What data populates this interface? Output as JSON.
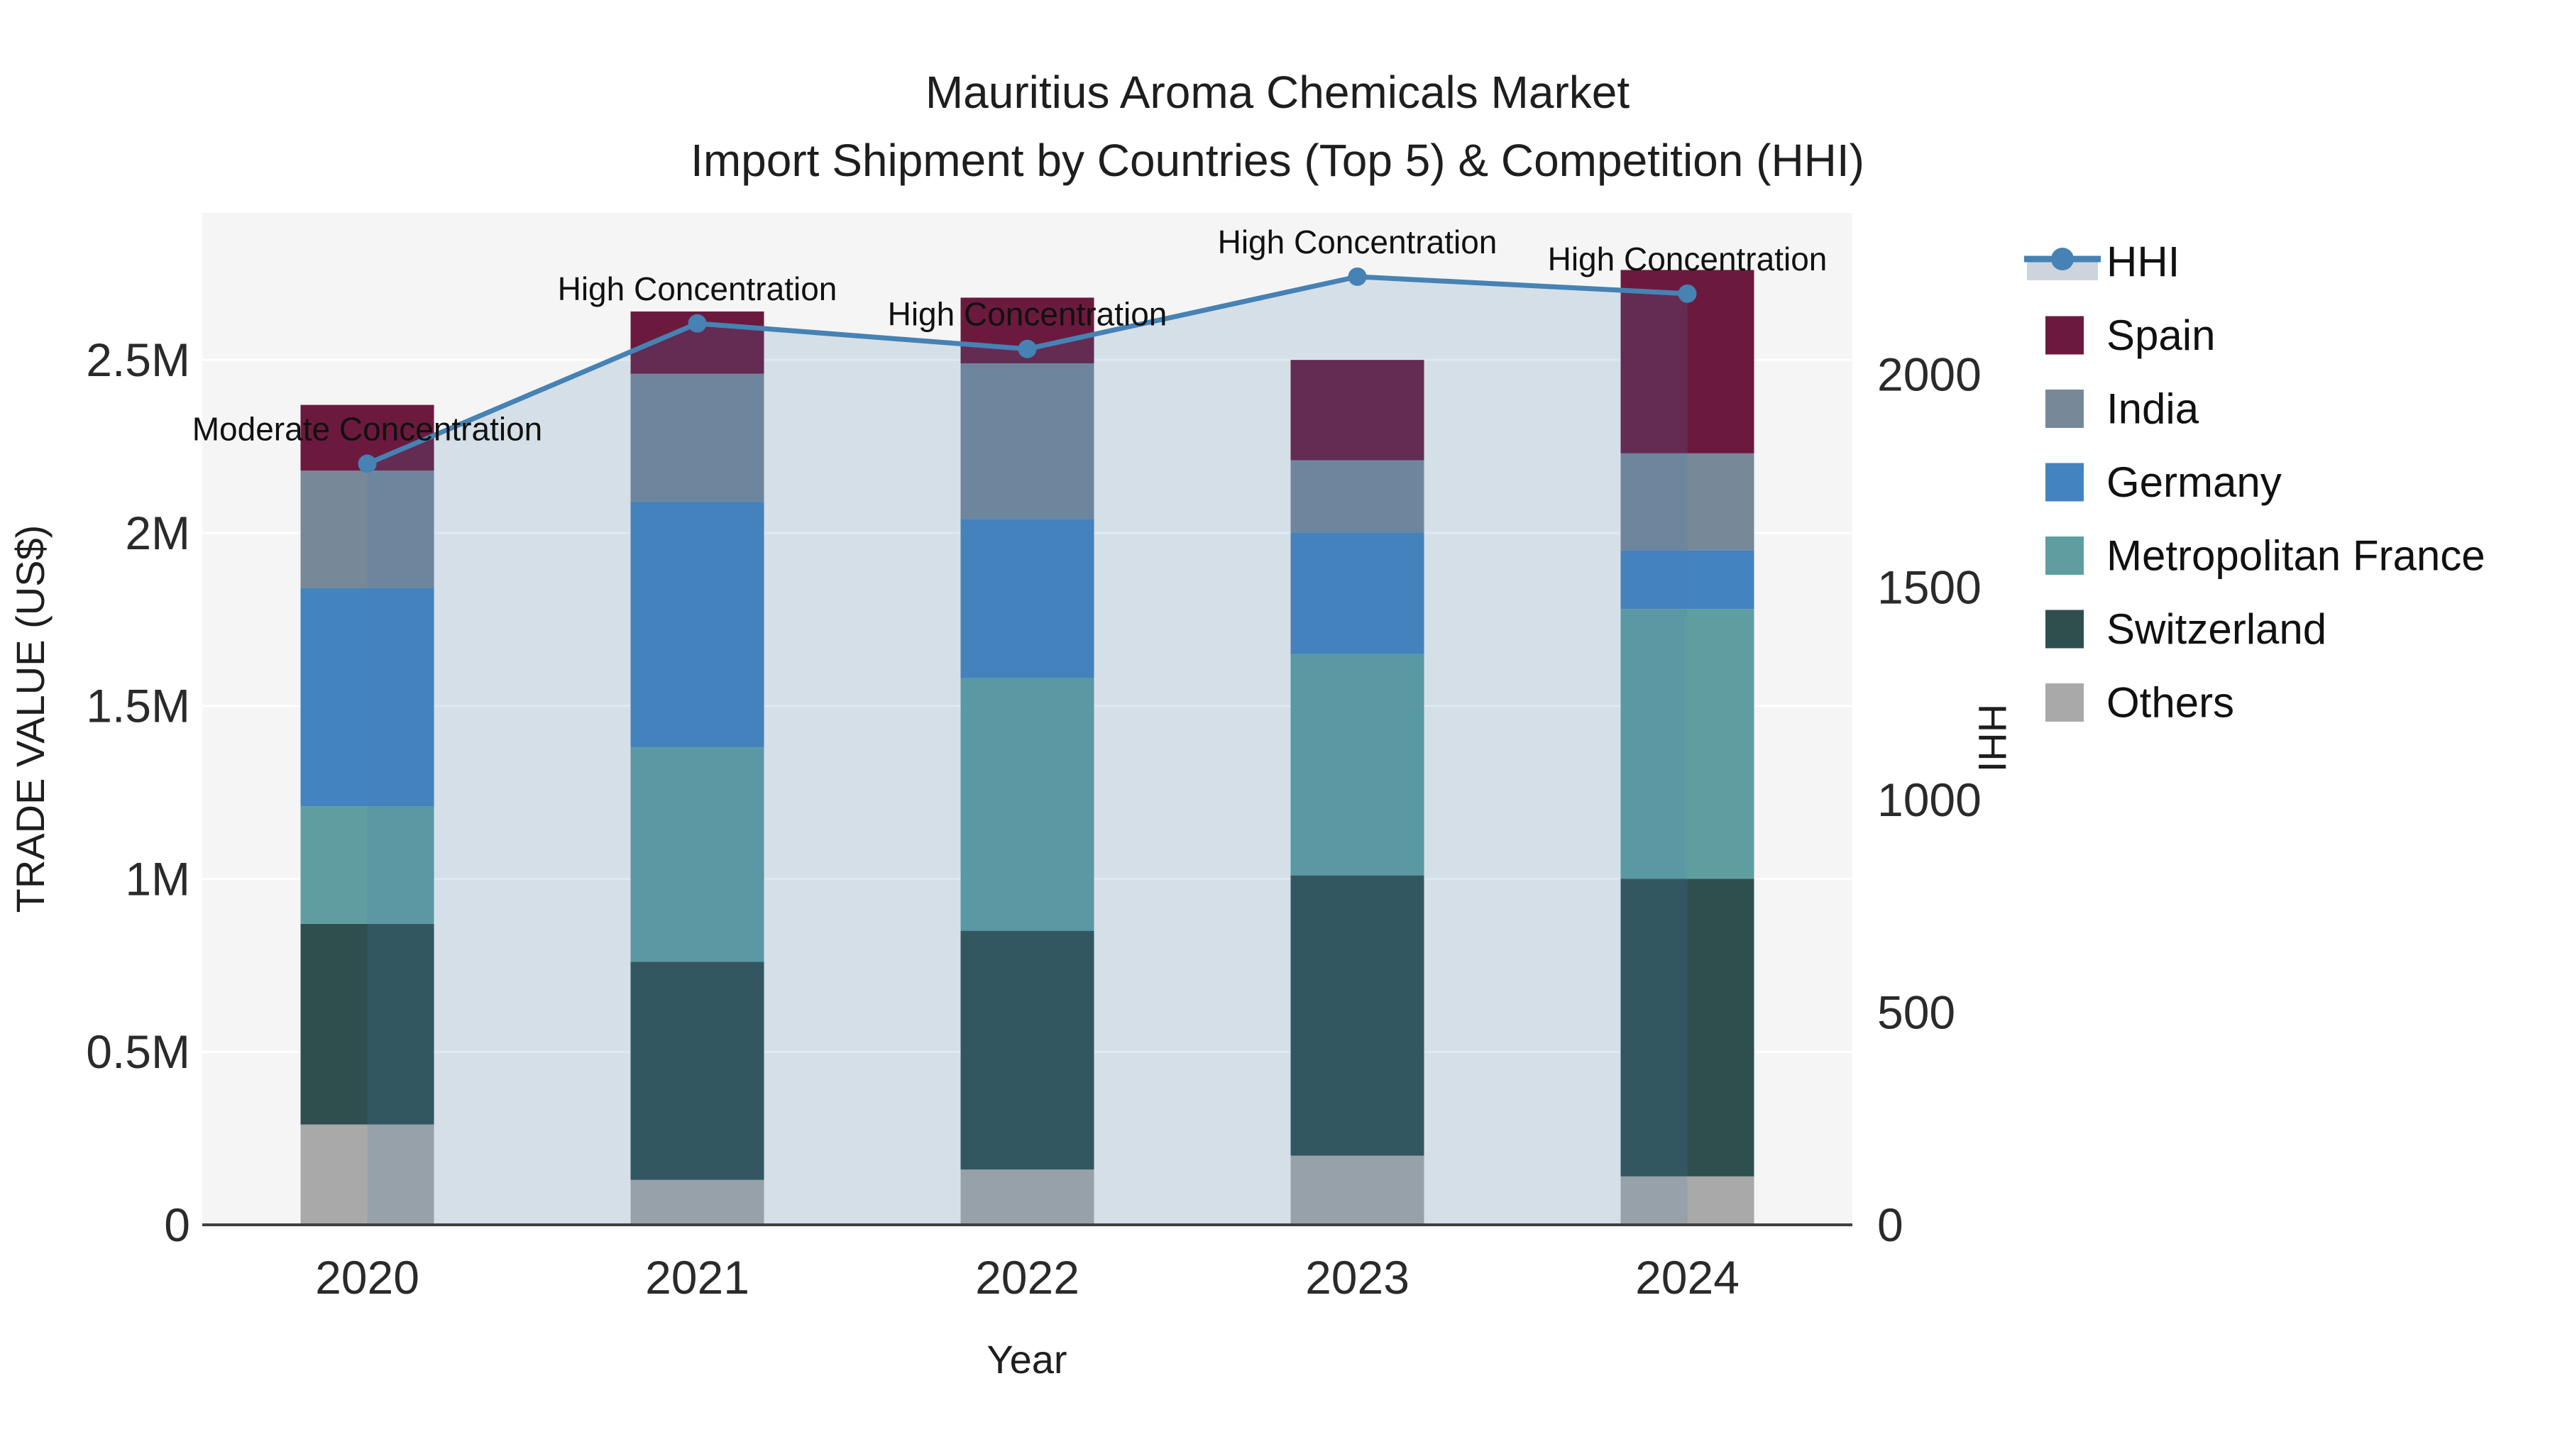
{
  "chart_data": {
    "type": "combo_stacked_bar_line",
    "title_line1": "Mauritius Aroma Chemicals Market",
    "title_line2": "Import Shipment by Countries (Top 5) & Competition (HHI)",
    "x": {
      "label": "Year",
      "categories": [
        "2020",
        "2021",
        "2022",
        "2023",
        "2024"
      ]
    },
    "y_left": {
      "label": "TRADE VALUE (US$)",
      "max": 2925000,
      "ticks": [
        {
          "v": 0,
          "t": "0"
        },
        {
          "v": 500000,
          "t": "0.5M"
        },
        {
          "v": 1000000,
          "t": "1M"
        },
        {
          "v": 1500000,
          "t": "1.5M"
        },
        {
          "v": 2000000,
          "t": "2M"
        },
        {
          "v": 2500000,
          "t": "2.5M"
        }
      ]
    },
    "y_right": {
      "label": "HHI",
      "max": 2380,
      "ticks": [
        {
          "v": 0,
          "t": "0"
        },
        {
          "v": 500,
          "t": "500"
        },
        {
          "v": 1000,
          "t": "1000"
        },
        {
          "v": 1500,
          "t": "1500"
        },
        {
          "v": 2000,
          "t": "2000"
        }
      ]
    },
    "stack_order_bottom_up": [
      "Others",
      "Switzerland",
      "Metropolitan France",
      "Germany",
      "India",
      "Spain"
    ],
    "series": [
      {
        "name": "Spain",
        "color": "#6b1a3e",
        "values": [
          190000,
          180000,
          190000,
          290000,
          530000
        ]
      },
      {
        "name": "India",
        "color": "#778899",
        "values": [
          340000,
          370000,
          450000,
          210000,
          280000
        ]
      },
      {
        "name": "Germany",
        "color": "#4383bf",
        "values": [
          630000,
          710000,
          460000,
          350000,
          170000
        ]
      },
      {
        "name": "Metropolitan France",
        "color": "#5f9ea0",
        "values": [
          340000,
          620000,
          730000,
          640000,
          780000
        ]
      },
      {
        "name": "Switzerland",
        "color": "#2f4f4f",
        "values": [
          580000,
          630000,
          690000,
          810000,
          860000
        ]
      },
      {
        "name": "Others",
        "color": "#a9a9a9",
        "values": [
          290000,
          130000,
          160000,
          200000,
          140000
        ]
      }
    ],
    "totals": [
      2370000,
      2640000,
      2680000,
      2500000,
      2760000
    ],
    "hhi": {
      "name": "HHI",
      "color": "#4682b4",
      "fill": "rgba(70,130,180,0.18)",
      "legend_band": "#ccd4dd",
      "values": [
        1790,
        2120,
        2060,
        2230,
        2190
      ]
    },
    "annotations": [
      "Moderate Concentration",
      "High Concentration",
      "High Concentration",
      "High Concentration",
      "High Concentration"
    ],
    "legend_order": [
      "HHI",
      "Spain",
      "India",
      "Germany",
      "Metropolitan France",
      "Switzerland",
      "Others"
    ],
    "colors": {
      "plot_bg": "#f5f5f5",
      "paper_bg": "#ffffff",
      "grid": "#ffffff",
      "axis_line": "#404040",
      "text": "#1e1e1e"
    }
  }
}
